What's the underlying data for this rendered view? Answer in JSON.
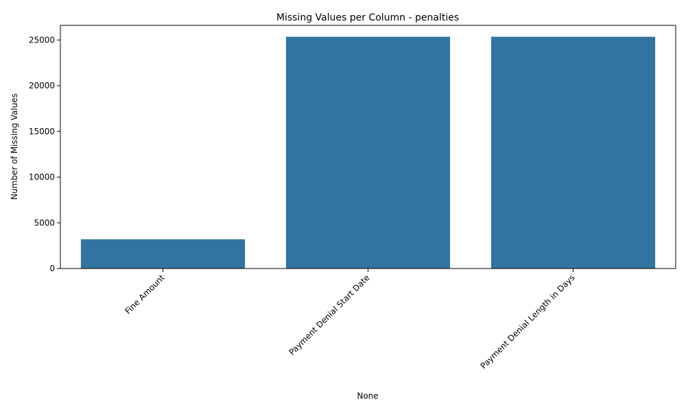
{
  "chart_data": {
    "type": "bar",
    "title": "Missing Values per Column - penalties",
    "xlabel": "None",
    "ylabel": "Number of Missing Values",
    "categories": [
      "Fine Amount",
      "Payment Denial Start Date",
      "Payment Denial Length in Days"
    ],
    "values": [
      3200,
      25350,
      25350
    ],
    "yticks": [
      0,
      5000,
      10000,
      15000,
      20000,
      25000
    ],
    "ylim": [
      0,
      26600
    ],
    "grid": false,
    "legend": "none",
    "bar_color": "#3274a1"
  }
}
